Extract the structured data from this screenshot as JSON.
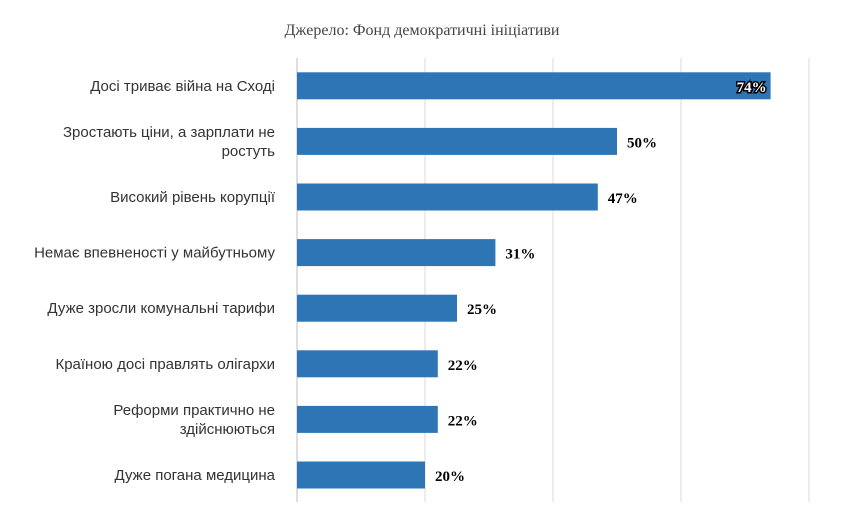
{
  "chart_data": {
    "type": "bar",
    "orientation": "horizontal",
    "title": "Джерело: Фонд демократичні ініціативи",
    "categories": [
      [
        "Досі триває війна на Сході"
      ],
      [
        "Зростають ціни, а зарплати не",
        "ростуть"
      ],
      [
        "Високий рівень корупції"
      ],
      [
        "Немає впевненості у майбутньому"
      ],
      [
        "Дуже зросли комунальні тарифи"
      ],
      [
        "Країною досі правлять олігархи"
      ],
      [
        "Реформи практично не",
        "здійснюються"
      ],
      [
        "Дуже погана медицина"
      ]
    ],
    "values": [
      74,
      50,
      47,
      31,
      25,
      22,
      22,
      20
    ],
    "value_labels": [
      "74%",
      "50%",
      "47%",
      "31%",
      "25%",
      "22%",
      "22%",
      "20%"
    ],
    "xlim": [
      0,
      80
    ],
    "grid": true,
    "bar_color": "#2e75b6"
  }
}
